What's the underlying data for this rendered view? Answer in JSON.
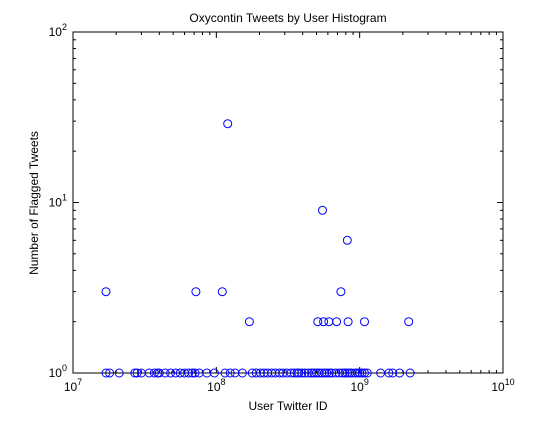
{
  "chart_data": {
    "type": "scatter",
    "title": "Oxycontin Tweets by User Histogram",
    "xlabel": "User Twitter ID",
    "ylabel": "Number of Flagged Tweets",
    "xscale": "log",
    "yscale": "log",
    "xlim": [
      10000000,
      10000000000
    ],
    "ylim": [
      1,
      100
    ],
    "x_ticks": [
      {
        "value": 10000000,
        "base": "10",
        "exp": "7"
      },
      {
        "value": 100000000,
        "base": "10",
        "exp": "8"
      },
      {
        "value": 1000000000,
        "base": "10",
        "exp": "9"
      },
      {
        "value": 10000000000,
        "base": "10",
        "exp": "10"
      }
    ],
    "y_ticks": [
      {
        "value": 1,
        "base": "10",
        "exp": "0"
      },
      {
        "value": 10,
        "base": "10",
        "exp": "1"
      },
      {
        "value": 100,
        "base": "10",
        "exp": "2"
      }
    ],
    "grid": false,
    "marker": "open-circle",
    "marker_color": "#0000ff",
    "points": [
      [
        17000000,
        3
      ],
      [
        120000000,
        29
      ],
      [
        550000000,
        9
      ],
      [
        820000000,
        6
      ],
      [
        72000000,
        3
      ],
      [
        110000000,
        3
      ],
      [
        740000000,
        3
      ],
      [
        170000000,
        2
      ],
      [
        510000000,
        2
      ],
      [
        560000000,
        2
      ],
      [
        610000000,
        2
      ],
      [
        690000000,
        2
      ],
      [
        830000000,
        2
      ],
      [
        1080000000,
        2
      ],
      [
        2200000000,
        2
      ],
      [
        17000000,
        1
      ],
      [
        18000000,
        1
      ],
      [
        21000000,
        1
      ],
      [
        27000000,
        1
      ],
      [
        28000000,
        1
      ],
      [
        30000000,
        1
      ],
      [
        34000000,
        1
      ],
      [
        37000000,
        1
      ],
      [
        39000000,
        1
      ],
      [
        40000000,
        1
      ],
      [
        44000000,
        1
      ],
      [
        48000000,
        1
      ],
      [
        52000000,
        1
      ],
      [
        56000000,
        1
      ],
      [
        60000000,
        1
      ],
      [
        64000000,
        1
      ],
      [
        68000000,
        1
      ],
      [
        71000000,
        1
      ],
      [
        76000000,
        1
      ],
      [
        86000000,
        1
      ],
      [
        97000000,
        1
      ],
      [
        115000000,
        1
      ],
      [
        125000000,
        1
      ],
      [
        135000000,
        1
      ],
      [
        152000000,
        1
      ],
      [
        178000000,
        1
      ],
      [
        190000000,
        1
      ],
      [
        203000000,
        1
      ],
      [
        215000000,
        1
      ],
      [
        228000000,
        1
      ],
      [
        243000000,
        1
      ],
      [
        258000000,
        1
      ],
      [
        276000000,
        1
      ],
      [
        292000000,
        1
      ],
      [
        310000000,
        1
      ],
      [
        332000000,
        1
      ],
      [
        350000000,
        1
      ],
      [
        366000000,
        1
      ],
      [
        376000000,
        1
      ],
      [
        395000000,
        1
      ],
      [
        415000000,
        1
      ],
      [
        438000000,
        1
      ],
      [
        462000000,
        1
      ],
      [
        480000000,
        1
      ],
      [
        500000000,
        1
      ],
      [
        520000000,
        1
      ],
      [
        545000000,
        1
      ],
      [
        570000000,
        1
      ],
      [
        590000000,
        1
      ],
      [
        615000000,
        1
      ],
      [
        640000000,
        1
      ],
      [
        680000000,
        1
      ],
      [
        720000000,
        1
      ],
      [
        760000000,
        1
      ],
      [
        790000000,
        1
      ],
      [
        820000000,
        1
      ],
      [
        850000000,
        1
      ],
      [
        880000000,
        1
      ],
      [
        930000000,
        1
      ],
      [
        970000000,
        1
      ],
      [
        1000000000,
        1
      ],
      [
        1040000000,
        1
      ],
      [
        1080000000,
        1
      ],
      [
        1130000000,
        1
      ],
      [
        1400000000,
        1
      ],
      [
        1600000000,
        1
      ],
      [
        1700000000,
        1
      ],
      [
        1900000000,
        1
      ],
      [
        2250000000,
        1
      ]
    ]
  }
}
